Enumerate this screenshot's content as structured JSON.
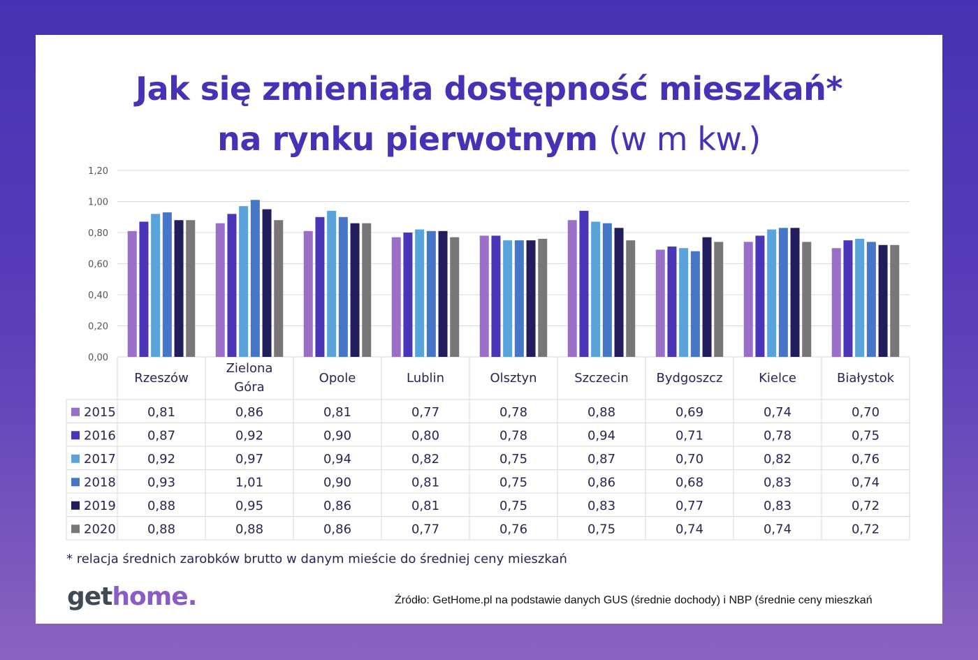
{
  "title_line1": "Jak się zmieniała dostępność mieszkań*",
  "title_line2_bold": "na rynku pierwotnym",
  "title_line2_light": "(w m kw.)",
  "footnote": "* relacja średnich zarobków brutto w danym mieście do średniej ceny mieszkań",
  "logo": {
    "part1": "get",
    "part2": "home."
  },
  "source": "Źródło: GetHome.pl na podstawie danych GUS (średnie dochody) i NBP (średnie ceny mieszkań",
  "chart_data": {
    "type": "bar",
    "categories": [
      "Rzeszów",
      "Zielona Góra",
      "Opole",
      "Lublin",
      "Olsztyn",
      "Szczecin",
      "Bydgoszcz",
      "Kielce",
      "Białystok"
    ],
    "ylim": [
      0,
      1.2
    ],
    "yticks": [
      "0,00",
      "0,20",
      "0,40",
      "0,60",
      "0,80",
      "1,00",
      "1,20"
    ],
    "grid": true,
    "legend": "data-table",
    "series": [
      {
        "name": "2015",
        "color": "#9b6fc8",
        "values": [
          0.81,
          0.86,
          0.81,
          0.77,
          0.78,
          0.88,
          0.69,
          0.74,
          0.7
        ],
        "labels": [
          "0,81",
          "0,86",
          "0,81",
          "0,77",
          "0,78",
          "0,88",
          "0,69",
          "0,74",
          "0,70"
        ]
      },
      {
        "name": "2016",
        "color": "#4a35b8",
        "values": [
          0.87,
          0.92,
          0.9,
          0.8,
          0.78,
          0.94,
          0.71,
          0.78,
          0.75
        ],
        "labels": [
          "0,87",
          "0,92",
          "0,90",
          "0,80",
          "0,78",
          "0,94",
          "0,71",
          "0,78",
          "0,75"
        ]
      },
      {
        "name": "2017",
        "color": "#5aa2da",
        "values": [
          0.92,
          0.97,
          0.94,
          0.82,
          0.75,
          0.87,
          0.7,
          0.82,
          0.76
        ],
        "labels": [
          "0,92",
          "0,97",
          "0,94",
          "0,82",
          "0,75",
          "0,87",
          "0,70",
          "0,82",
          "0,76"
        ]
      },
      {
        "name": "2018",
        "color": "#4676c8",
        "values": [
          0.93,
          1.01,
          0.9,
          0.81,
          0.75,
          0.86,
          0.68,
          0.83,
          0.74
        ],
        "labels": [
          "0,93",
          "1,01",
          "0,90",
          "0,81",
          "0,75",
          "0,86",
          "0,68",
          "0,83",
          "0,74"
        ]
      },
      {
        "name": "2019",
        "color": "#221d5c",
        "values": [
          0.88,
          0.95,
          0.86,
          0.81,
          0.75,
          0.83,
          0.77,
          0.83,
          0.72
        ],
        "labels": [
          "0,88",
          "0,95",
          "0,86",
          "0,81",
          "0,75",
          "0,83",
          "0,77",
          "0,83",
          "0,72"
        ]
      },
      {
        "name": "2020",
        "color": "#777777",
        "values": [
          0.88,
          0.88,
          0.86,
          0.77,
          0.76,
          0.75,
          0.74,
          0.74,
          0.72
        ],
        "labels": [
          "0,88",
          "0,88",
          "0,86",
          "0,77",
          "0,76",
          "0,75",
          "0,74",
          "0,74",
          "0,72"
        ]
      }
    ]
  }
}
